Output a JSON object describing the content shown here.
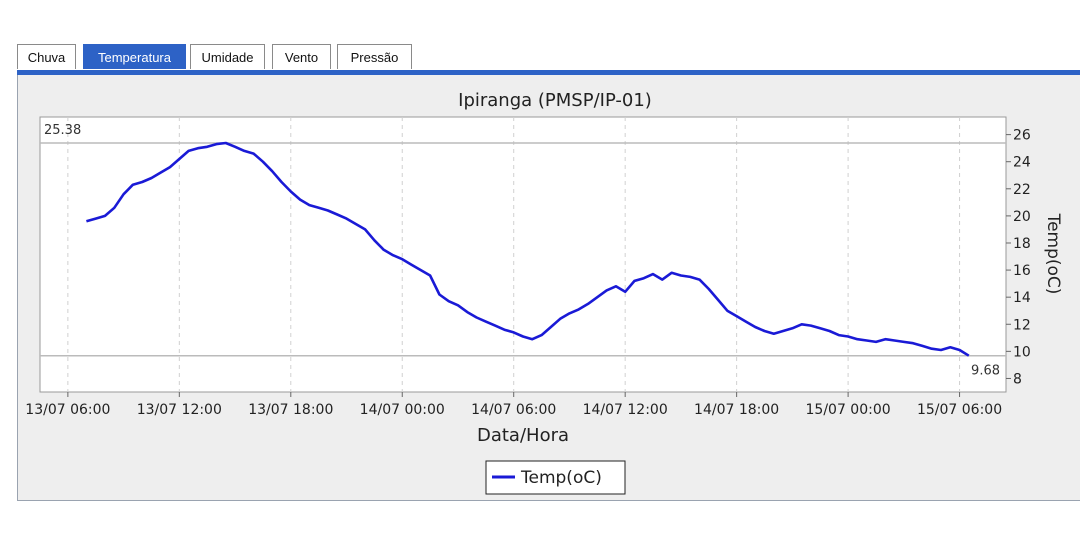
{
  "tabs": [
    {
      "label": "Chuva",
      "active": false
    },
    {
      "label": "Temperatura",
      "active": true
    },
    {
      "label": "Umidade",
      "active": false
    },
    {
      "label": "Vento",
      "active": false
    },
    {
      "label": "Pressão",
      "active": false
    }
  ],
  "colors": {
    "accent": "#2d62c6",
    "series": "#1a1ad6",
    "panel": "#eeeeee"
  },
  "chart_data": {
    "type": "line",
    "title": "Ipiranga (PMSP/IP-01)",
    "xlabel": "Data/Hora",
    "ylabel": "Temp(oC)",
    "y_axis_side": "right",
    "ylim": [
      7,
      27.3
    ],
    "yticks": [
      8,
      10,
      12,
      14,
      16,
      18,
      20,
      22,
      24,
      26
    ],
    "x_range_hours": [
      -1.5,
      50.5
    ],
    "xticks": [
      {
        "hour": 0,
        "label": "13/07 06:00"
      },
      {
        "hour": 6,
        "label": "13/07 12:00"
      },
      {
        "hour": 12,
        "label": "13/07 18:00"
      },
      {
        "hour": 18,
        "label": "14/07 00:00"
      },
      {
        "hour": 24,
        "label": "14/07 06:00"
      },
      {
        "hour": 30,
        "label": "14/07 12:00"
      },
      {
        "hour": 36,
        "label": "14/07 18:00"
      },
      {
        "hour": 42,
        "label": "15/07 00:00"
      },
      {
        "hour": 48,
        "label": "15/07 06:00"
      }
    ],
    "max_marker": {
      "value": 25.38,
      "label": "25.38"
    },
    "min_marker": {
      "value": 9.68,
      "label": "9.68"
    },
    "legend": {
      "placement": "bottom-center"
    },
    "grid": true,
    "series": [
      {
        "name": "Temp(oC)",
        "points": [
          [
            1.0,
            19.6
          ],
          [
            1.5,
            19.8
          ],
          [
            2.0,
            20.0
          ],
          [
            2.5,
            20.6
          ],
          [
            3.0,
            21.6
          ],
          [
            3.5,
            22.3
          ],
          [
            4.0,
            22.5
          ],
          [
            4.5,
            22.8
          ],
          [
            5.0,
            23.2
          ],
          [
            5.5,
            23.6
          ],
          [
            6.0,
            24.2
          ],
          [
            6.5,
            24.8
          ],
          [
            7.0,
            25.0
          ],
          [
            7.5,
            25.1
          ],
          [
            8.0,
            25.3
          ],
          [
            8.5,
            25.38
          ],
          [
            9.0,
            25.1
          ],
          [
            9.5,
            24.8
          ],
          [
            10.0,
            24.6
          ],
          [
            10.5,
            24.0
          ],
          [
            11.0,
            23.3
          ],
          [
            11.5,
            22.5
          ],
          [
            12.0,
            21.8
          ],
          [
            12.5,
            21.2
          ],
          [
            13.0,
            20.8
          ],
          [
            13.5,
            20.6
          ],
          [
            14.0,
            20.4
          ],
          [
            14.5,
            20.1
          ],
          [
            15.0,
            19.8
          ],
          [
            15.5,
            19.4
          ],
          [
            16.0,
            19.0
          ],
          [
            16.5,
            18.2
          ],
          [
            17.0,
            17.5
          ],
          [
            17.5,
            17.1
          ],
          [
            18.0,
            16.8
          ],
          [
            18.5,
            16.4
          ],
          [
            19.0,
            16.0
          ],
          [
            19.5,
            15.6
          ],
          [
            20.0,
            14.2
          ],
          [
            20.5,
            13.7
          ],
          [
            21.0,
            13.4
          ],
          [
            21.5,
            12.9
          ],
          [
            22.0,
            12.5
          ],
          [
            22.5,
            12.2
          ],
          [
            23.0,
            11.9
          ],
          [
            23.5,
            11.6
          ],
          [
            24.0,
            11.4
          ],
          [
            24.5,
            11.1
          ],
          [
            25.0,
            10.9
          ],
          [
            25.5,
            11.2
          ],
          [
            26.0,
            11.8
          ],
          [
            26.5,
            12.4
          ],
          [
            27.0,
            12.8
          ],
          [
            27.5,
            13.1
          ],
          [
            28.0,
            13.5
          ],
          [
            28.5,
            14.0
          ],
          [
            29.0,
            14.5
          ],
          [
            29.5,
            14.8
          ],
          [
            30.0,
            14.4
          ],
          [
            30.5,
            15.2
          ],
          [
            31.0,
            15.4
          ],
          [
            31.5,
            15.7
          ],
          [
            32.0,
            15.3
          ],
          [
            32.5,
            15.8
          ],
          [
            33.0,
            15.6
          ],
          [
            33.5,
            15.5
          ],
          [
            34.0,
            15.3
          ],
          [
            34.5,
            14.6
          ],
          [
            35.0,
            13.8
          ],
          [
            35.5,
            13.0
          ],
          [
            36.0,
            12.6
          ],
          [
            36.5,
            12.2
          ],
          [
            37.0,
            11.8
          ],
          [
            37.5,
            11.5
          ],
          [
            38.0,
            11.3
          ],
          [
            38.5,
            11.5
          ],
          [
            39.0,
            11.7
          ],
          [
            39.5,
            12.0
          ],
          [
            40.0,
            11.9
          ],
          [
            40.5,
            11.7
          ],
          [
            41.0,
            11.5
          ],
          [
            41.5,
            11.2
          ],
          [
            42.0,
            11.1
          ],
          [
            42.5,
            10.9
          ],
          [
            43.0,
            10.8
          ],
          [
            43.5,
            10.7
          ],
          [
            44.0,
            10.9
          ],
          [
            44.5,
            10.8
          ],
          [
            45.0,
            10.7
          ],
          [
            45.5,
            10.6
          ],
          [
            46.0,
            10.4
          ],
          [
            46.5,
            10.2
          ],
          [
            47.0,
            10.1
          ],
          [
            47.5,
            10.3
          ],
          [
            48.0,
            10.1
          ],
          [
            48.5,
            9.68
          ]
        ]
      }
    ]
  }
}
